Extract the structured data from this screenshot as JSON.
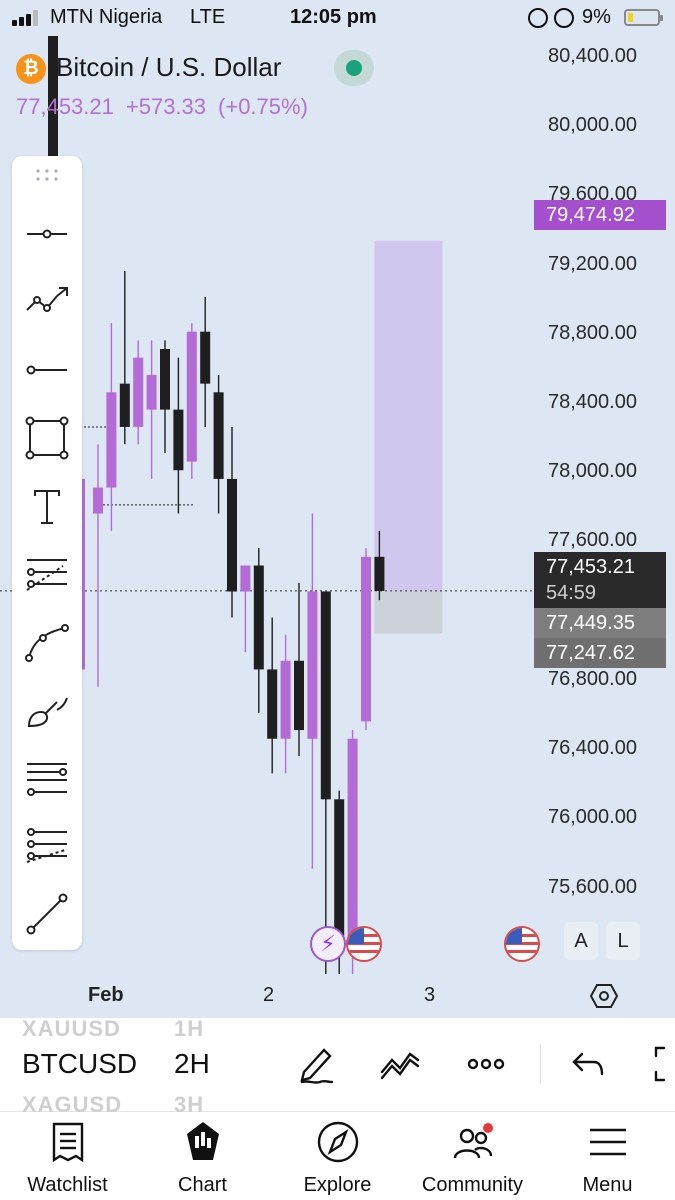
{
  "status_bar": {
    "carrier": "MTN Nigeria",
    "network": "LTE",
    "time": "12:05 pm",
    "battery": "9%"
  },
  "symbol": {
    "name": "Bitcoin / U.S. Dollar",
    "logo_glyph": "₿",
    "last_price": "77,453.21",
    "change": "+573.33",
    "change_pct": "(+0.75%)"
  },
  "price_axis": {
    "labels": [
      "80,400.00",
      "80,000.00",
      "79,600.00",
      "79,200.00",
      "78,800.00",
      "78,400.00",
      "78,000.00",
      "77,600.00",
      "76,800.00",
      "76,400.00",
      "76,000.00",
      "75,600.00"
    ]
  },
  "price_tags": {
    "target": "79,474.92",
    "last": "77,453.21",
    "countdown": "54:59",
    "level_1": "77,449.35",
    "level_2": "77,247.62"
  },
  "time_axis": {
    "labels": [
      "Feb",
      "2",
      "3"
    ]
  },
  "chart_chips": {
    "auto": "A",
    "log": "L"
  },
  "colors": {
    "background": "#dde6f3",
    "bull": "#b46bd6",
    "bear": "#1f1f1f",
    "target_zone": "#cfc2ec",
    "stop_zone": "#cdd2da",
    "target_tag": "#a34fce",
    "last_tag": "#2a2a2a",
    "level_tag": "#7d7d7d"
  },
  "drawing_tools": [
    "horizontal-ray-tool-icon",
    "trend-line-tool-icon",
    "ray-tool-icon",
    "rectangle-tool-icon",
    "text-tool-icon",
    "pitchfork-tool-icon",
    "path-tool-icon",
    "brush-tool-icon",
    "parallel-channel-tool-icon",
    "fib-retracement-tool-icon",
    "line-tool-icon"
  ],
  "bottom_toolbar": {
    "ghost_symbol_above": "XAUUSD",
    "ghost_interval_above": "1H",
    "symbol": "BTCUSD",
    "interval": "2H",
    "ghost_symbol_below": "XAGUSD",
    "ghost_interval_below": "3H"
  },
  "tabs": [
    {
      "label": "Watchlist",
      "icon": "watchlist-icon"
    },
    {
      "label": "Chart",
      "icon": "chart-icon"
    },
    {
      "label": "Explore",
      "icon": "compass-icon"
    },
    {
      "label": "Community",
      "icon": "community-icon"
    },
    {
      "label": "Menu",
      "icon": "menu-icon"
    }
  ],
  "chart_data": {
    "type": "candlestick",
    "ylim": [
      75300,
      80600
    ],
    "target_price": 79474.92,
    "entry_price": 77453.21,
    "stop_price": 77247.62,
    "candles": [
      {
        "o": 77900,
        "h": 78300,
        "l": 76900,
        "c": 78050
      },
      {
        "o": 78050,
        "h": 79000,
        "l": 77800,
        "c": 78600
      },
      {
        "o": 78650,
        "h": 79300,
        "l": 78300,
        "c": 78400
      },
      {
        "o": 78400,
        "h": 78900,
        "l": 78300,
        "c": 78800
      },
      {
        "o": 78500,
        "h": 78900,
        "l": 78100,
        "c": 78700
      },
      {
        "o": 78850,
        "h": 78900,
        "l": 78250,
        "c": 78500
      },
      {
        "o": 78500,
        "h": 78800,
        "l": 77900,
        "c": 78150
      },
      {
        "o": 78200,
        "h": 79000,
        "l": 78100,
        "c": 78950
      },
      {
        "o": 78950,
        "h": 79150,
        "l": 78400,
        "c": 78650
      },
      {
        "o": 78600,
        "h": 78700,
        "l": 77900,
        "c": 78100
      },
      {
        "o": 78100,
        "h": 78400,
        "l": 77300,
        "c": 77450
      },
      {
        "o": 77450,
        "h": 77600,
        "l": 77100,
        "c": 77600
      },
      {
        "o": 77600,
        "h": 77700,
        "l": 76750,
        "c": 77000
      },
      {
        "o": 77000,
        "h": 77300,
        "l": 76400,
        "c": 76600
      },
      {
        "o": 76600,
        "h": 77200,
        "l": 76400,
        "c": 77050
      },
      {
        "o": 77050,
        "h": 77500,
        "l": 76500,
        "c": 76650
      },
      {
        "o": 76600,
        "h": 77900,
        "l": 75850,
        "c": 77450
      },
      {
        "o": 77450,
        "h": 77450,
        "l": 75100,
        "c": 76250
      },
      {
        "o": 76250,
        "h": 76300,
        "l": 75100,
        "c": 75450
      },
      {
        "o": 75450,
        "h": 76650,
        "l": 75200,
        "c": 76600
      },
      {
        "o": 76700,
        "h": 77700,
        "l": 76650,
        "c": 77650
      },
      {
        "o": 77650,
        "h": 77800,
        "l": 77400,
        "c": 77453.21
      }
    ]
  }
}
